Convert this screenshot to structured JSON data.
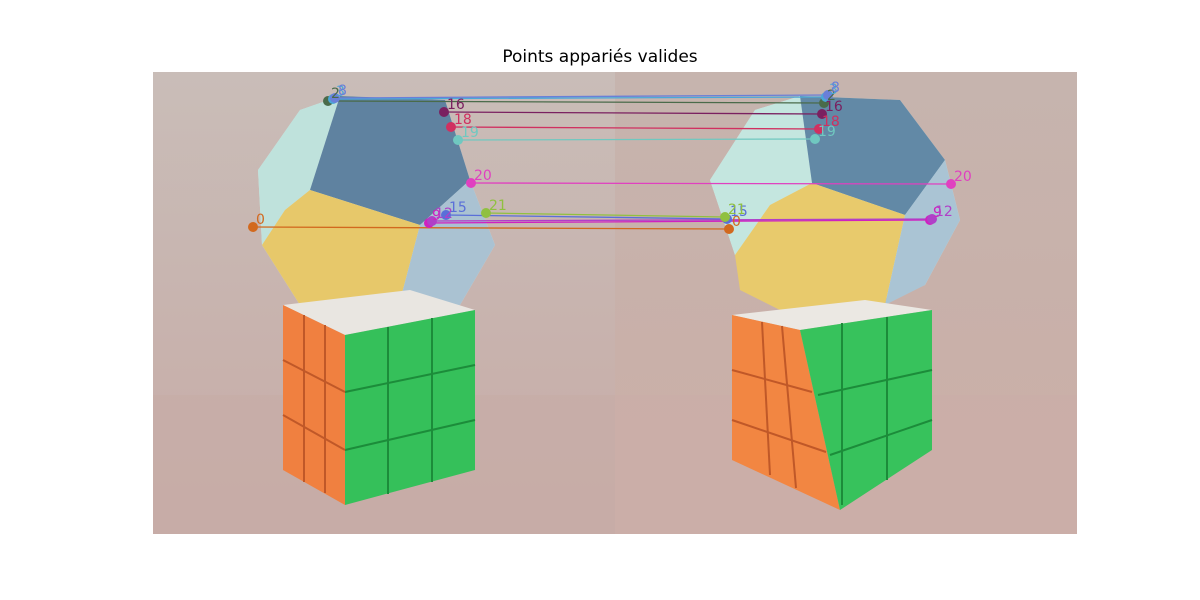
{
  "title": "Points appariés valides",
  "matches": [
    {
      "label": "0",
      "color": "#d2691e",
      "left": [
        253,
        227
      ],
      "right": [
        729,
        229
      ]
    },
    {
      "label": "2",
      "color": "#4a6b4a",
      "left": [
        328,
        101
      ],
      "right": [
        824,
        103
      ]
    },
    {
      "label": "3",
      "color": "#4aa8d8",
      "left": [
        333,
        99
      ],
      "right": [
        826,
        97
      ]
    },
    {
      "label": "8",
      "color": "#6a7fd8",
      "left": [
        335,
        98
      ],
      "right": [
        828,
        95
      ]
    },
    {
      "label": "9",
      "color": "#d020c0",
      "left": [
        429,
        223
      ],
      "right": [
        930,
        220
      ]
    },
    {
      "label": "12",
      "color": "#b040c8",
      "left": [
        432,
        221
      ],
      "right": [
        932,
        219
      ]
    },
    {
      "label": "15",
      "color": "#5a6fd8",
      "left": [
        446,
        215
      ],
      "right": [
        727,
        219
      ]
    },
    {
      "label": "16",
      "color": "#7a2060",
      "left": [
        444,
        112
      ],
      "right": [
        822,
        114
      ]
    },
    {
      "label": "18",
      "color": "#d03060",
      "left": [
        451,
        127
      ],
      "right": [
        819,
        129
      ]
    },
    {
      "label": "19",
      "color": "#70c8c0",
      "left": [
        458,
        140
      ],
      "right": [
        815,
        139
      ]
    },
    {
      "label": "20",
      "color": "#e040c0",
      "left": [
        471,
        183
      ],
      "right": [
        951,
        184
      ]
    },
    {
      "label": "21",
      "color": "#90c040",
      "left": [
        486,
        213
      ],
      "right": [
        725,
        217
      ]
    }
  ]
}
